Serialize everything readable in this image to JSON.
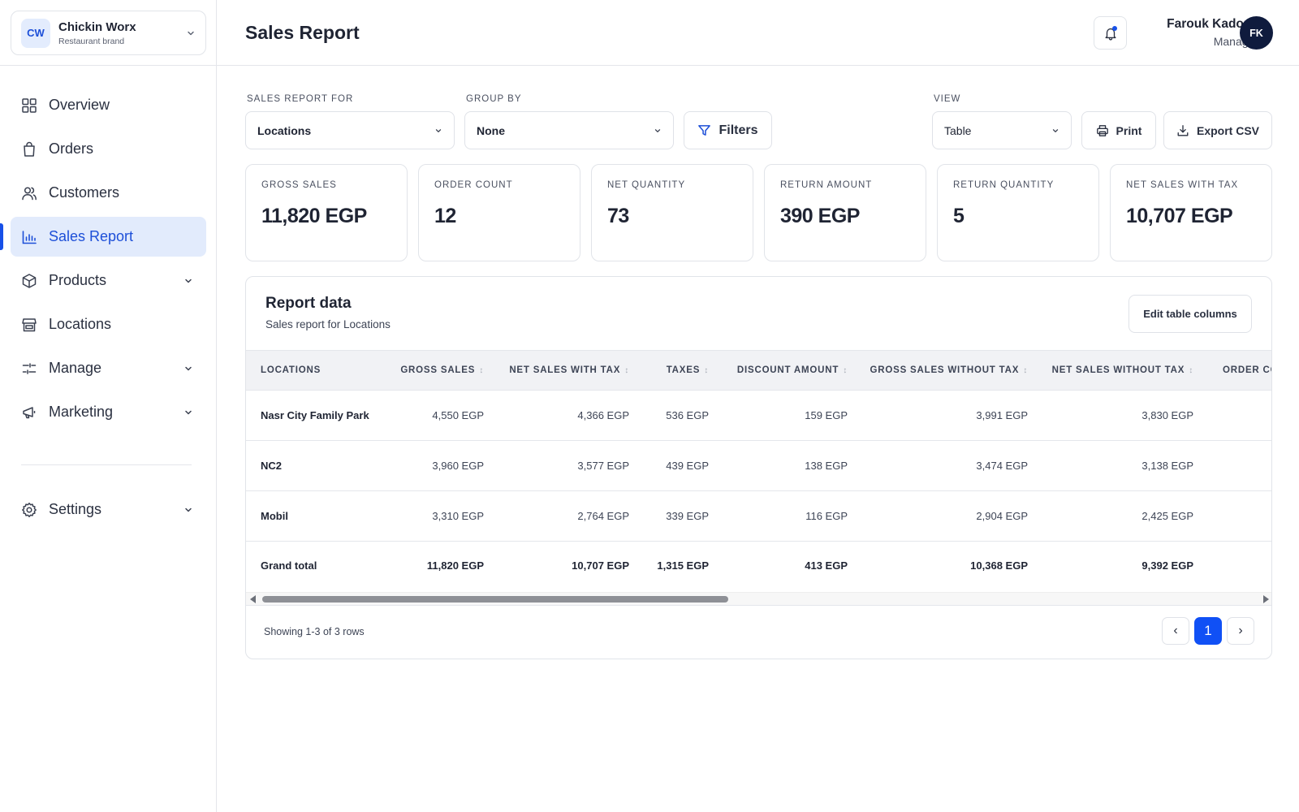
{
  "brand": {
    "badge": "CW",
    "name": "Chickin Worx",
    "subtitle": "Restaurant brand"
  },
  "sidebar": {
    "items": [
      {
        "label": "Overview",
        "icon": "grid-icon"
      },
      {
        "label": "Orders",
        "icon": "shopping-bag-icon"
      },
      {
        "label": "Customers",
        "icon": "users-icon"
      },
      {
        "label": "Sales Report",
        "icon": "bar-chart-icon",
        "active": true
      },
      {
        "label": "Products",
        "icon": "box-icon",
        "expandable": true
      },
      {
        "label": "Locations",
        "icon": "store-icon"
      },
      {
        "label": "Manage",
        "icon": "sliders-icon",
        "expandable": true
      },
      {
        "label": "Marketing",
        "icon": "megaphone-icon",
        "expandable": true
      }
    ],
    "settings": {
      "label": "Settings",
      "icon": "gear-icon",
      "expandable": true
    }
  },
  "header": {
    "title": "Sales Report",
    "user": {
      "name": "Farouk Kadous",
      "role": "Manager",
      "initials": "FK"
    }
  },
  "controls": {
    "report_for": {
      "label": "SALES REPORT FOR",
      "value": "Locations"
    },
    "group_by": {
      "label": "GROUP BY",
      "value": "None"
    },
    "filters_label": "Filters",
    "view": {
      "label": "VIEW",
      "value": "Table"
    },
    "print_label": "Print",
    "export_label": "Export CSV"
  },
  "stats": [
    {
      "label": "GROSS SALES",
      "value": "11,820 EGP"
    },
    {
      "label": "ORDER COUNT",
      "value": "12"
    },
    {
      "label": "NET QUANTITY",
      "value": "73"
    },
    {
      "label": "RETURN AMOUNT",
      "value": "390 EGP"
    },
    {
      "label": "RETURN QUANTITY",
      "value": "5"
    },
    {
      "label": "NET SALES WITH TAX",
      "value": "10,707 EGP"
    }
  ],
  "report": {
    "title": "Report data",
    "subtitle": "Sales report for Locations",
    "edit_columns_label": "Edit table columns",
    "columns": [
      "LOCATIONS",
      "GROSS SALES",
      "NET SALES WITH TAX",
      "TAXES",
      "DISCOUNT AMOUNT",
      "GROSS SALES WITHOUT TAX",
      "NET SALES WITHOUT TAX",
      "ORDER CO"
    ],
    "rows": [
      [
        "Nasr City Family Park",
        "4,550 EGP",
        "4,366 EGP",
        "536 EGP",
        "159 EGP",
        "3,991 EGP",
        "3,830 EGP"
      ],
      [
        "NC2",
        "3,960 EGP",
        "3,577 EGP",
        "439 EGP",
        "138 EGP",
        "3,474 EGP",
        "3,138 EGP"
      ],
      [
        "Mobil",
        "3,310 EGP",
        "2,764 EGP",
        "339 EGP",
        "116 EGP",
        "2,904 EGP",
        "2,425 EGP"
      ]
    ],
    "total": [
      "Grand total",
      "11,820 EGP",
      "10,707 EGP",
      "1,315 EGP",
      "413 EGP",
      "10,368 EGP",
      "9,392 EGP"
    ],
    "scroll_position": 0.45,
    "showing": "Showing 1-3 of 3 rows",
    "pagination": {
      "prev": "‹",
      "current": "1",
      "next": "›"
    }
  },
  "colors": {
    "accent": "#1750e8",
    "active_bg": "#e2ebfc",
    "avatar_bg": "#0f1b3d",
    "page_button": "#1050f5"
  }
}
